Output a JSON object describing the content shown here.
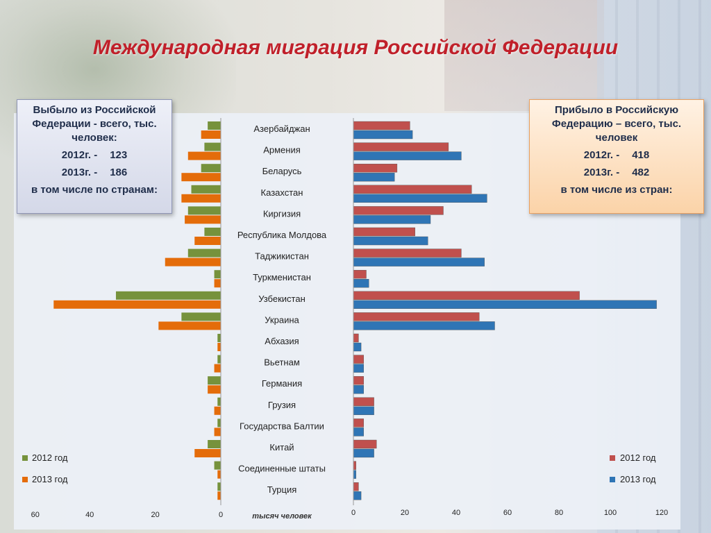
{
  "title": "Международная миграция Российской Федерации",
  "left_box": {
    "header": "Выбыло из Российской Федерации  - всего, тыс. человек:",
    "y2012_label": "2012г. -",
    "y2012_value": "123",
    "y2013_label": "2013г. -",
    "y2013_value": "186",
    "footer": "в том числе по странам:"
  },
  "right_box": {
    "header": "Прибыло в Российскую Федерацию – всего, тыс. человек",
    "y2012_label": "2012г. -",
    "y2012_value": "418",
    "y2013_label": "2013г. -",
    "y2013_value": "482",
    "footer": "в том числе из стран:"
  },
  "chart_data": {
    "type": "bar",
    "orientation": "horizontal",
    "units": "тысяч человек",
    "xlabel": "тысяч человек",
    "categories": [
      "Азербайджан",
      "Армения",
      "Беларусь",
      "Казахстан",
      "Киргизия",
      "Республика Молдова",
      "Таджикистан",
      "Туркменистан",
      "Узбекистан",
      "Украина",
      "Абхазия",
      "Вьетнам",
      "Германия",
      "Грузия",
      "Государства Балтии",
      "Китай",
      "Соединенные штаты",
      "Турция"
    ],
    "outflow": {
      "xlim": [
        60,
        0
      ],
      "ticks": [
        "60",
        "40",
        "20",
        "0"
      ],
      "series": [
        {
          "name": "2012 год",
          "color": "#76923c",
          "values": [
            4,
            5,
            6,
            9,
            10,
            5,
            10,
            2,
            32,
            12,
            1,
            1,
            4,
            1,
            1,
            4,
            2,
            1
          ]
        },
        {
          "name": "2013 год",
          "color": "#e46c0a",
          "values": [
            6,
            10,
            12,
            12,
            11,
            8,
            17,
            2,
            51,
            19,
            1,
            2,
            4,
            2,
            2,
            8,
            1,
            1
          ]
        }
      ]
    },
    "inflow": {
      "xlim": [
        0,
        120
      ],
      "ticks": [
        "0",
        "20",
        "40",
        "60",
        "80",
        "100",
        "120"
      ],
      "series": [
        {
          "name": "2012 год",
          "color": "#c0504d",
          "values": [
            22,
            37,
            17,
            46,
            35,
            24,
            42,
            5,
            88,
            49,
            2,
            4,
            4,
            8,
            4,
            9,
            1,
            2
          ]
        },
        {
          "name": "2013 год",
          "color": "#2f75b5",
          "values": [
            23,
            42,
            16,
            52,
            30,
            29,
            51,
            6,
            118,
            55,
            3,
            4,
            4,
            8,
            4,
            8,
            1,
            3
          ]
        }
      ]
    }
  }
}
